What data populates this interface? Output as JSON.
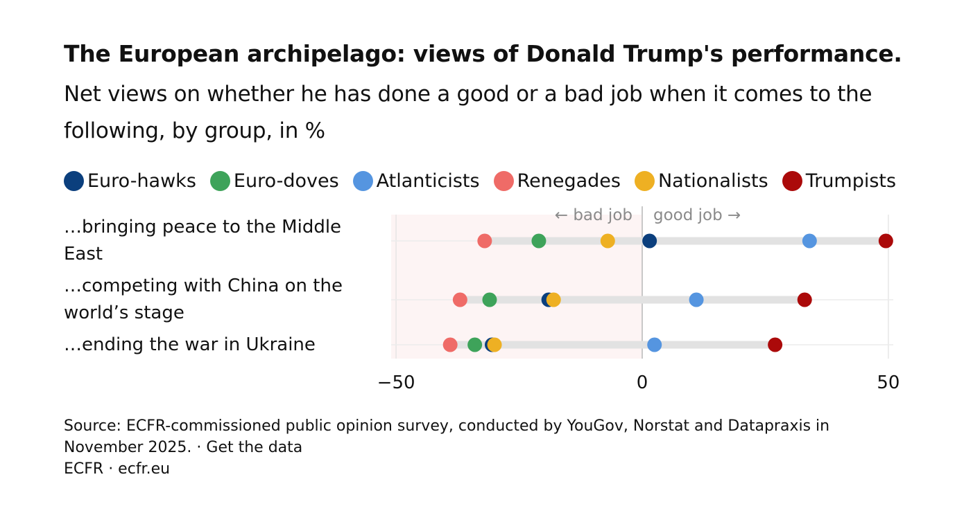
{
  "title": "The European archipelago: views of Donald Trump's performance.",
  "subtitle": "Net views on whether he has done a good or a bad job when it comes to the following, by group, in %",
  "colors": {
    "Euro-hawks": "#0b3f7d",
    "Euro-doves": "#3ea35a",
    "Atlanticists": "#5595e0",
    "Renegades": "#ef6b67",
    "Nationalists": "#eeb023",
    "Trumpists": "#ab0a0a",
    "negative_region": "#fdf4f4",
    "range_bar": "#e2e2e2"
  },
  "source": {
    "line1": "Source: ECFR-commissioned public opinion survey, conducted by YouGov, Norstat and Datapraxis in",
    "line2": "November 2025. · Get the data",
    "line3": "ECFR · ecfr.eu"
  },
  "chart_data": {
    "type": "dot-range",
    "title": "The European archipelago: views of Donald Trump's performance.",
    "subtitle": "Net views on whether he has done a good or a bad job when it comes to the following, by group, in %",
    "xlim": [
      -51,
      51
    ],
    "xticks": [
      -50,
      0,
      50
    ],
    "xtick_labels": [
      "−50",
      "0",
      "50"
    ],
    "annotations": {
      "left": "← bad job",
      "right": "good job →"
    },
    "series_names": [
      "Euro-hawks",
      "Euro-doves",
      "Atlanticists",
      "Renegades",
      "Nationalists",
      "Trumpists"
    ],
    "categories": [
      {
        "label": "…bringing peace to the Middle East",
        "values": {
          "Euro-hawks": 1.5,
          "Euro-doves": -21,
          "Atlanticists": 34,
          "Renegades": -32,
          "Nationalists": -7,
          "Trumpists": 49.5
        }
      },
      {
        "label": "…competing with China on the world’s stage",
        "values": {
          "Euro-hawks": -19,
          "Euro-doves": -31,
          "Atlanticists": 11,
          "Renegades": -37,
          "Nationalists": -18,
          "Trumpists": 33
        }
      },
      {
        "label": "…ending the war in Ukraine",
        "values": {
          "Euro-hawks": -30.5,
          "Euro-doves": -34,
          "Atlanticists": 2.5,
          "Renegades": -39,
          "Nationalists": -30,
          "Trumpists": 27
        }
      }
    ]
  }
}
